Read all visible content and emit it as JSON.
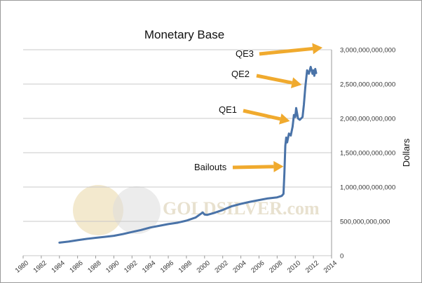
{
  "chart_data": {
    "type": "line",
    "title": "Monetary Base",
    "ylabel": "Dollars",
    "xlabel": "",
    "xlim": [
      1980,
      2014
    ],
    "ylim": [
      0,
      3000000000000
    ],
    "x_ticks": [
      "1980",
      "1982",
      "1984",
      "1986",
      "1988",
      "1990",
      "1992",
      "1994",
      "1996",
      "1998",
      "2000",
      "2002",
      "2004",
      "2006",
      "2008",
      "2010",
      "2012",
      "2014"
    ],
    "y_ticks": [
      "0",
      "500,000,000,000",
      "1,000,000,000,000",
      "1,500,000,000,000",
      "2,000,000,000,000",
      "2,500,000,000,000",
      "3,000,000,000,000"
    ],
    "y_tick_values": [
      0,
      500000000000,
      1000000000000,
      1500000000000,
      2000000000000,
      2500000000000,
      3000000000000
    ],
    "grid": true,
    "series": [
      {
        "color": "#4a73a8",
        "x": [
          1984.0,
          1985.0,
          1986.0,
          1987.0,
          1988.0,
          1989.0,
          1990.0,
          1991.0,
          1992.0,
          1993.0,
          1994.0,
          1995.0,
          1996.0,
          1997.0,
          1998.0,
          1999.0,
          1999.8,
          2000.0,
          2000.3,
          2001.0,
          2002.0,
          2003.0,
          2004.0,
          2005.0,
          2006.0,
          2007.0,
          2008.0,
          2008.5,
          2008.7,
          2008.8,
          2008.9,
          2009.0,
          2009.1,
          2009.3,
          2009.5,
          2009.7,
          2009.85,
          2010.0,
          2010.1,
          2010.3,
          2010.5,
          2010.8,
          2010.95,
          2011.1,
          2011.3,
          2011.5,
          2011.7,
          2011.9,
          2012.0,
          2012.1,
          2012.2,
          2012.3
        ],
        "y": [
          190000000000,
          205000000000,
          225000000000,
          245000000000,
          260000000000,
          275000000000,
          290000000000,
          315000000000,
          345000000000,
          375000000000,
          410000000000,
          435000000000,
          460000000000,
          480000000000,
          510000000000,
          555000000000,
          630000000000,
          600000000000,
          595000000000,
          620000000000,
          665000000000,
          720000000000,
          755000000000,
          785000000000,
          810000000000,
          835000000000,
          850000000000,
          870000000000,
          900000000000,
          1200000000000,
          1600000000000,
          1720000000000,
          1650000000000,
          1780000000000,
          1750000000000,
          1880000000000,
          2050000000000,
          2020000000000,
          2150000000000,
          2000000000000,
          1980000000000,
          2020000000000,
          2200000000000,
          2450000000000,
          2700000000000,
          2650000000000,
          2750000000000,
          2650000000000,
          2700000000000,
          2620000000000,
          2720000000000,
          2660000000000
        ]
      }
    ],
    "annotations": [
      {
        "label": "Bailouts",
        "arrow_color": "#f0aa2e",
        "target_x": 2008.7,
        "target_y": 1300000000000
      },
      {
        "label": "QE1",
        "arrow_color": "#f0aa2e",
        "target_x": 2009.4,
        "target_y": 1960000000000
      },
      {
        "label": "QE2",
        "arrow_color": "#f0aa2e",
        "target_x": 2010.7,
        "target_y": 2490000000000
      },
      {
        "label": "QE3",
        "arrow_color": "#f0aa2e",
        "target_x": 2013.0,
        "target_y": 3030000000000
      }
    ],
    "watermark": "GOLDSILVER.com"
  }
}
